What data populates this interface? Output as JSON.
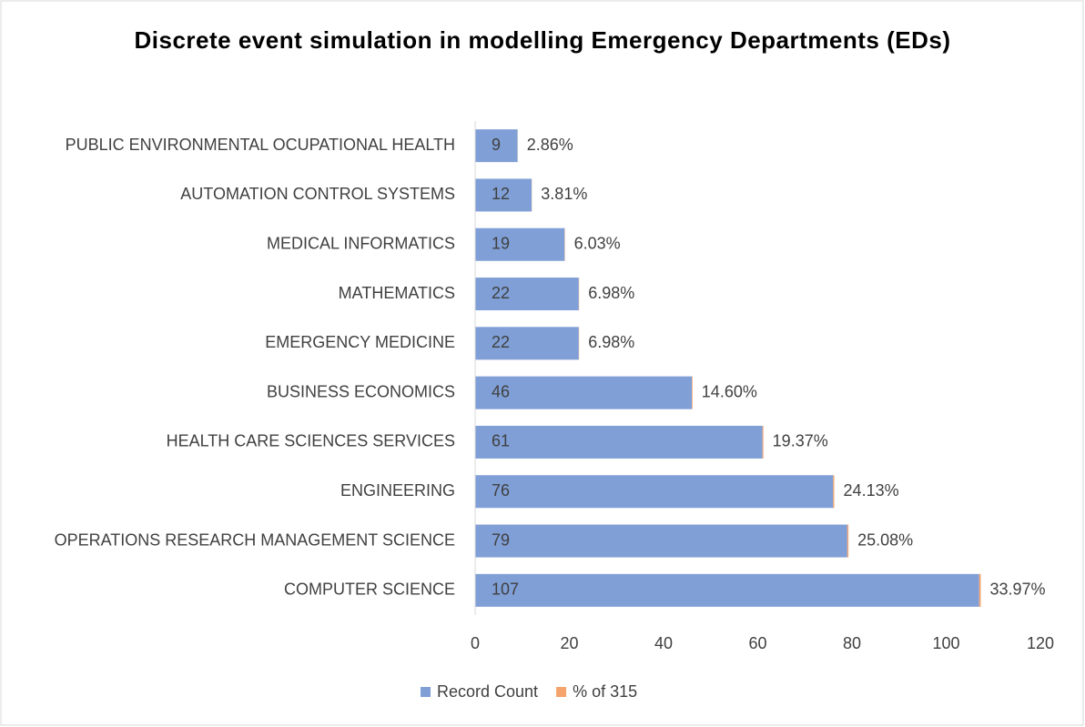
{
  "chart_data": {
    "type": "stacked_barh",
    "title": "Discrete event simulation in modelling Emergency Departments (EDs)",
    "categories": [
      "PUBLIC ENVIRONMENTAL OCUPATIONAL HEALTH",
      "AUTOMATION CONTROL SYSTEMS",
      "MEDICAL INFORMATICS",
      "MATHEMATICS",
      "EMERGENCY MEDICINE",
      "BUSINESS ECONOMICS",
      "HEALTH CARE SCIENCES SERVICES",
      "ENGINEERING",
      "OPERATIONS RESEARCH MANAGEMENT SCIENCE",
      "COMPUTER SCIENCE"
    ],
    "series": [
      {
        "name": "Record Count",
        "color": "#7f9fd6",
        "values": [
          9,
          12,
          19,
          22,
          22,
          46,
          61,
          76,
          79,
          107
        ]
      },
      {
        "name": "% of 315",
        "color": "#f4a46c",
        "values": [
          0.0286,
          0.0381,
          0.0603,
          0.0698,
          0.0698,
          0.146,
          0.1937,
          0.2413,
          0.2508,
          0.3397
        ],
        "value_labels": [
          "2.86%",
          "3.81%",
          "6.03%",
          "6.98%",
          "6.98%",
          "14.60%",
          "19.37%",
          "24.13%",
          "25.08%",
          "33.97%"
        ]
      }
    ],
    "xlim": [
      0,
      120
    ],
    "xticks": [
      0,
      20,
      40,
      60,
      80,
      100,
      120
    ],
    "legend": "bottom",
    "grid": false
  }
}
